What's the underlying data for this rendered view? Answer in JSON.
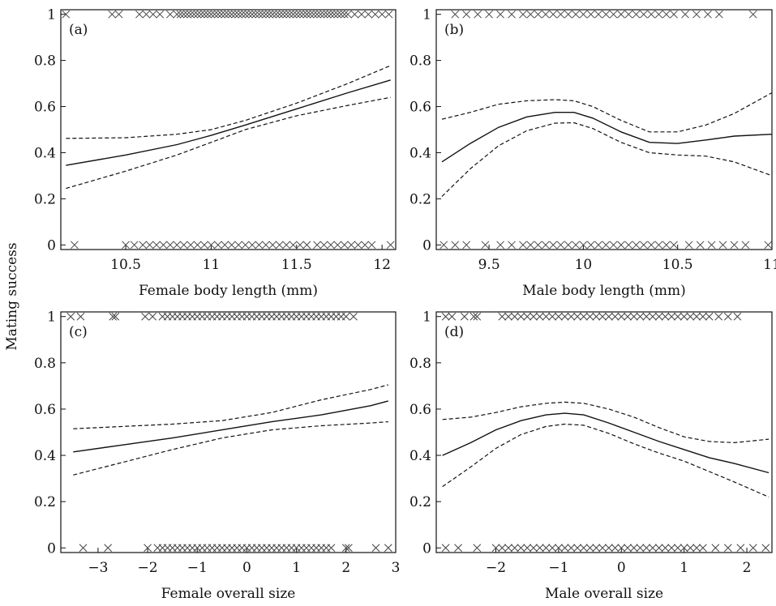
{
  "shared_ylabel": "Mating success",
  "chart_data": [
    {
      "type": "line",
      "panel_label": "(a)",
      "xlabel": "Female body length (mm)",
      "ylabel": "Mating success",
      "xlim": [
        10.12,
        12.08
      ],
      "ylim": [
        -0.02,
        1.02
      ],
      "xticks": [
        10.5,
        11,
        11.5,
        12
      ],
      "xtick_labels": [
        "10.5",
        "11",
        "11.5",
        "12"
      ],
      "yticks": [
        0,
        0.2,
        0.4,
        0.6,
        0.8,
        1
      ],
      "ytick_labels": [
        "0",
        "0.2",
        "0.4",
        "0.6",
        "0.8",
        "1"
      ],
      "series": [
        {
          "style": "solid",
          "x": [
            10.15,
            10.5,
            10.8,
            11.0,
            11.2,
            11.5,
            11.8,
            12.05
          ],
          "y": [
            0.345,
            0.39,
            0.435,
            0.475,
            0.52,
            0.59,
            0.66,
            0.715
          ]
        },
        {
          "style": "dashed",
          "x": [
            10.15,
            10.5,
            10.8,
            11.0,
            11.2,
            11.5,
            11.8,
            12.05
          ],
          "y": [
            0.462,
            0.465,
            0.48,
            0.5,
            0.54,
            0.615,
            0.7,
            0.778
          ]
        },
        {
          "style": "dashed",
          "x": [
            10.15,
            10.5,
            10.8,
            11.0,
            11.2,
            11.5,
            11.8,
            12.05
          ],
          "y": [
            0.245,
            0.32,
            0.39,
            0.445,
            0.5,
            0.56,
            0.605,
            0.64
          ]
        }
      ],
      "points_y1": [
        10.15,
        10.42,
        10.46,
        10.58,
        10.62,
        10.66,
        10.7,
        10.76,
        10.8,
        10.82,
        10.84,
        10.86,
        10.88,
        10.9,
        10.92,
        10.94,
        10.96,
        10.98,
        11.0,
        11.02,
        11.04,
        11.06,
        11.08,
        11.1,
        11.12,
        11.14,
        11.16,
        11.18,
        11.2,
        11.22,
        11.24,
        11.26,
        11.28,
        11.3,
        11.32,
        11.34,
        11.36,
        11.38,
        11.4,
        11.42,
        11.44,
        11.46,
        11.48,
        11.5,
        11.52,
        11.54,
        11.56,
        11.58,
        11.6,
        11.62,
        11.64,
        11.66,
        11.68,
        11.7,
        11.72,
        11.74,
        11.76,
        11.78,
        11.8,
        11.84,
        11.88,
        11.92,
        11.96,
        12.0,
        12.04
      ],
      "points_y0": [
        10.2,
        10.5,
        10.55,
        10.6,
        10.64,
        10.68,
        10.72,
        10.76,
        10.8,
        10.84,
        10.88,
        10.92,
        10.96,
        11.0,
        11.04,
        11.08,
        11.12,
        11.16,
        11.2,
        11.24,
        11.28,
        11.32,
        11.36,
        11.4,
        11.44,
        11.48,
        11.52,
        11.56,
        11.62,
        11.66,
        11.7,
        11.74,
        11.78,
        11.82,
        11.86,
        11.9,
        11.94,
        12.05
      ]
    },
    {
      "type": "line",
      "panel_label": "(b)",
      "xlabel": "Male body length (mm)",
      "ylabel": "Mating success",
      "xlim": [
        9.22,
        11.0
      ],
      "ylim": [
        -0.02,
        1.02
      ],
      "xticks": [
        9.5,
        10,
        10.5,
        11
      ],
      "xtick_labels": [
        "9.5",
        "10",
        "10.5",
        "11"
      ],
      "yticks": [
        0,
        0.2,
        0.4,
        0.6,
        0.8,
        1
      ],
      "ytick_labels": [
        "0",
        "0.2",
        "0.4",
        "0.6",
        "0.8",
        "1"
      ],
      "series": [
        {
          "style": "solid",
          "x": [
            9.25,
            9.4,
            9.55,
            9.7,
            9.85,
            9.95,
            10.05,
            10.2,
            10.35,
            10.5,
            10.65,
            10.8,
            11.0
          ],
          "y": [
            0.36,
            0.44,
            0.51,
            0.555,
            0.575,
            0.575,
            0.55,
            0.49,
            0.445,
            0.44,
            0.455,
            0.472,
            0.48
          ]
        },
        {
          "style": "dashed",
          "x": [
            9.25,
            9.4,
            9.55,
            9.7,
            9.85,
            9.95,
            10.05,
            10.2,
            10.35,
            10.5,
            10.65,
            10.8,
            11.0
          ],
          "y": [
            0.545,
            0.575,
            0.61,
            0.625,
            0.63,
            0.625,
            0.6,
            0.54,
            0.49,
            0.49,
            0.52,
            0.57,
            0.66
          ]
        },
        {
          "style": "dashed",
          "x": [
            9.25,
            9.4,
            9.55,
            9.7,
            9.85,
            9.95,
            10.05,
            10.2,
            10.35,
            10.5,
            10.65,
            10.8,
            11.0
          ],
          "y": [
            0.21,
            0.33,
            0.43,
            0.495,
            0.528,
            0.53,
            0.505,
            0.445,
            0.4,
            0.39,
            0.385,
            0.36,
            0.3
          ]
        }
      ],
      "points_y1": [
        9.32,
        9.38,
        9.44,
        9.5,
        9.56,
        9.62,
        9.68,
        9.72,
        9.76,
        9.8,
        9.84,
        9.88,
        9.92,
        9.96,
        10.0,
        10.04,
        10.08,
        10.12,
        10.16,
        10.2,
        10.24,
        10.28,
        10.32,
        10.36,
        10.4,
        10.44,
        10.48,
        10.54,
        10.6,
        10.66,
        10.72,
        10.9
      ],
      "points_y0": [
        9.26,
        9.32,
        9.38,
        9.48,
        9.56,
        9.62,
        9.68,
        9.72,
        9.76,
        9.8,
        9.84,
        9.88,
        9.92,
        9.96,
        10.0,
        10.04,
        10.08,
        10.12,
        10.16,
        10.2,
        10.24,
        10.28,
        10.32,
        10.36,
        10.4,
        10.44,
        10.48,
        10.56,
        10.62,
        10.68,
        10.74,
        10.8,
        10.86,
        10.98
      ]
    },
    {
      "type": "line",
      "panel_label": "(c)",
      "xlabel": "Female overall size",
      "ylabel": "Mating success",
      "xlim": [
        -3.75,
        3.0
      ],
      "ylim": [
        -0.02,
        1.02
      ],
      "xticks": [
        -3,
        -2,
        -1,
        0,
        1,
        2,
        3
      ],
      "xtick_labels": [
        "−3",
        "−2",
        "−1",
        "0",
        "1",
        "2",
        "3"
      ],
      "yticks": [
        0,
        0.2,
        0.4,
        0.6,
        0.8,
        1
      ],
      "ytick_labels": [
        "0",
        "0.2",
        "0.4",
        "0.6",
        "0.8",
        "1"
      ],
      "series": [
        {
          "style": "solid",
          "x": [
            -3.5,
            -2.5,
            -1.5,
            -0.5,
            0.5,
            1.5,
            2.5,
            2.85
          ],
          "y": [
            0.415,
            0.445,
            0.475,
            0.51,
            0.545,
            0.575,
            0.615,
            0.635
          ]
        },
        {
          "style": "dashed",
          "x": [
            -3.5,
            -2.5,
            -1.5,
            -0.5,
            0.5,
            1.5,
            2.5,
            2.85
          ],
          "y": [
            0.515,
            0.525,
            0.535,
            0.55,
            0.585,
            0.64,
            0.685,
            0.705
          ]
        },
        {
          "style": "dashed",
          "x": [
            -3.5,
            -2.5,
            -1.5,
            -0.5,
            0.5,
            1.5,
            2.5,
            2.85
          ],
          "y": [
            0.315,
            0.37,
            0.425,
            0.475,
            0.51,
            0.528,
            0.54,
            0.545
          ]
        }
      ],
      "points_y1": [
        -3.55,
        -3.35,
        -2.7,
        -2.65,
        -2.05,
        -1.9,
        -1.7,
        -1.6,
        -1.5,
        -1.4,
        -1.3,
        -1.2,
        -1.1,
        -1.0,
        -0.9,
        -0.8,
        -0.7,
        -0.6,
        -0.5,
        -0.4,
        -0.3,
        -0.2,
        -0.1,
        0.0,
        0.1,
        0.2,
        0.3,
        0.4,
        0.5,
        0.6,
        0.7,
        0.8,
        0.9,
        1.0,
        1.1,
        1.2,
        1.3,
        1.4,
        1.5,
        1.6,
        1.7,
        1.8,
        1.9,
        2.0,
        2.15
      ],
      "points_y0": [
        -3.3,
        -2.8,
        -2.0,
        -1.8,
        -1.7,
        -1.6,
        -1.5,
        -1.4,
        -1.3,
        -1.2,
        -1.1,
        -1.0,
        -0.9,
        -0.8,
        -0.7,
        -0.6,
        -0.5,
        -0.4,
        -0.3,
        -0.2,
        -0.1,
        0.0,
        0.1,
        0.2,
        0.3,
        0.4,
        0.5,
        0.6,
        0.7,
        0.8,
        0.9,
        1.0,
        1.1,
        1.2,
        1.3,
        1.4,
        1.5,
        1.6,
        1.7,
        2.0,
        2.05,
        2.6,
        2.85
      ]
    },
    {
      "type": "line",
      "panel_label": "(d)",
      "xlabel": "Male overall size",
      "ylabel": "Mating success",
      "xlim": [
        -2.95,
        2.4
      ],
      "ylim": [
        -0.02,
        1.02
      ],
      "xticks": [
        -2,
        -1,
        0,
        1,
        2
      ],
      "xtick_labels": [
        "−2",
        "−1",
        "0",
        "1",
        "2"
      ],
      "yticks": [
        0,
        0.2,
        0.4,
        0.6,
        0.8,
        1
      ],
      "ytick_labels": [
        "0",
        "0.2",
        "0.4",
        "0.6",
        "0.8",
        "1"
      ],
      "series": [
        {
          "style": "solid",
          "x": [
            -2.85,
            -2.4,
            -2.0,
            -1.6,
            -1.2,
            -0.9,
            -0.6,
            -0.2,
            0.2,
            0.6,
            1.0,
            1.4,
            1.8,
            2.35
          ],
          "y": [
            0.4,
            0.455,
            0.51,
            0.55,
            0.575,
            0.582,
            0.575,
            0.54,
            0.5,
            0.46,
            0.425,
            0.39,
            0.365,
            0.325
          ]
        },
        {
          "style": "dashed",
          "x": [
            -2.85,
            -2.4,
            -2.0,
            -1.6,
            -1.2,
            -0.9,
            -0.6,
            -0.2,
            0.2,
            0.6,
            1.0,
            1.4,
            1.8,
            2.35
          ],
          "y": [
            0.555,
            0.565,
            0.585,
            0.61,
            0.625,
            0.63,
            0.625,
            0.6,
            0.565,
            0.52,
            0.48,
            0.46,
            0.455,
            0.47
          ]
        },
        {
          "style": "dashed",
          "x": [
            -2.85,
            -2.4,
            -2.0,
            -1.6,
            -1.2,
            -0.9,
            -0.6,
            -0.2,
            0.2,
            0.6,
            1.0,
            1.4,
            1.8,
            2.35
          ],
          "y": [
            0.265,
            0.35,
            0.43,
            0.49,
            0.525,
            0.535,
            0.53,
            0.495,
            0.45,
            0.41,
            0.375,
            0.33,
            0.285,
            0.22
          ]
        }
      ],
      "points_y1": [
        -2.8,
        -2.7,
        -2.5,
        -2.35,
        -2.3,
        -1.9,
        -1.8,
        -1.7,
        -1.6,
        -1.5,
        -1.4,
        -1.3,
        -1.2,
        -1.1,
        -1.0,
        -0.9,
        -0.8,
        -0.7,
        -0.6,
        -0.5,
        -0.4,
        -0.3,
        -0.2,
        -0.1,
        0.0,
        0.1,
        0.2,
        0.3,
        0.4,
        0.5,
        0.6,
        0.7,
        0.8,
        0.9,
        1.0,
        1.1,
        1.2,
        1.3,
        1.4,
        1.55,
        1.7,
        1.85
      ],
      "points_y0": [
        -2.8,
        -2.6,
        -2.3,
        -2.0,
        -1.9,
        -1.8,
        -1.7,
        -1.6,
        -1.5,
        -1.4,
        -1.3,
        -1.2,
        -1.1,
        -1.0,
        -0.9,
        -0.8,
        -0.7,
        -0.6,
        -0.5,
        -0.4,
        -0.3,
        -0.2,
        -0.1,
        0.0,
        0.1,
        0.2,
        0.3,
        0.4,
        0.5,
        0.6,
        0.7,
        0.8,
        0.9,
        1.0,
        1.1,
        1.2,
        1.3,
        1.5,
        1.7,
        1.9,
        2.1,
        2.3
      ]
    }
  ]
}
